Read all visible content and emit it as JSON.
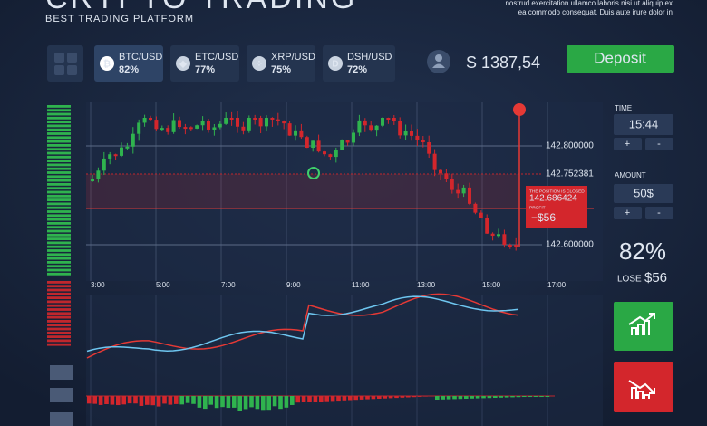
{
  "header": {
    "title": "CRYPTO TRADING",
    "subtitle": "BEST TRADING PLATFORM",
    "note": [
      "nostrud exercitation ullamco laboris nisi ut aliquip ex",
      "ea commodo consequat. Duis aute irure dolor in"
    ]
  },
  "tickers": [
    {
      "pair": "BTC/USD",
      "percent": "82%"
    },
    {
      "pair": "ETC/USD",
      "percent": "77%"
    },
    {
      "pair": "XRP/USD",
      "percent": "75%"
    },
    {
      "pair": "DSH/USD",
      "percent": "72%"
    }
  ],
  "balance": "S 1387,54",
  "deposit": "Deposit",
  "chart": {
    "price_labels": [
      "142.800000",
      "142.752381",
      "142.600000"
    ],
    "times": [
      "3:00",
      "5:00",
      "7:00",
      "9:00",
      "11:00",
      "13:00",
      "15:00",
      "17:00"
    ],
    "position": {
      "status": "THE POSITION IS CLOSED",
      "price": "142.686424",
      "profit_label": "PROFIT",
      "profit": "−$56"
    }
  },
  "panel": {
    "time_label": "TIME",
    "time": "15:44",
    "amount_label": "AMOUNT",
    "amount": "50$",
    "plus": "+",
    "minus": "-",
    "percent": "82%",
    "lose_label": "LOSE",
    "lose": "$56"
  }
}
